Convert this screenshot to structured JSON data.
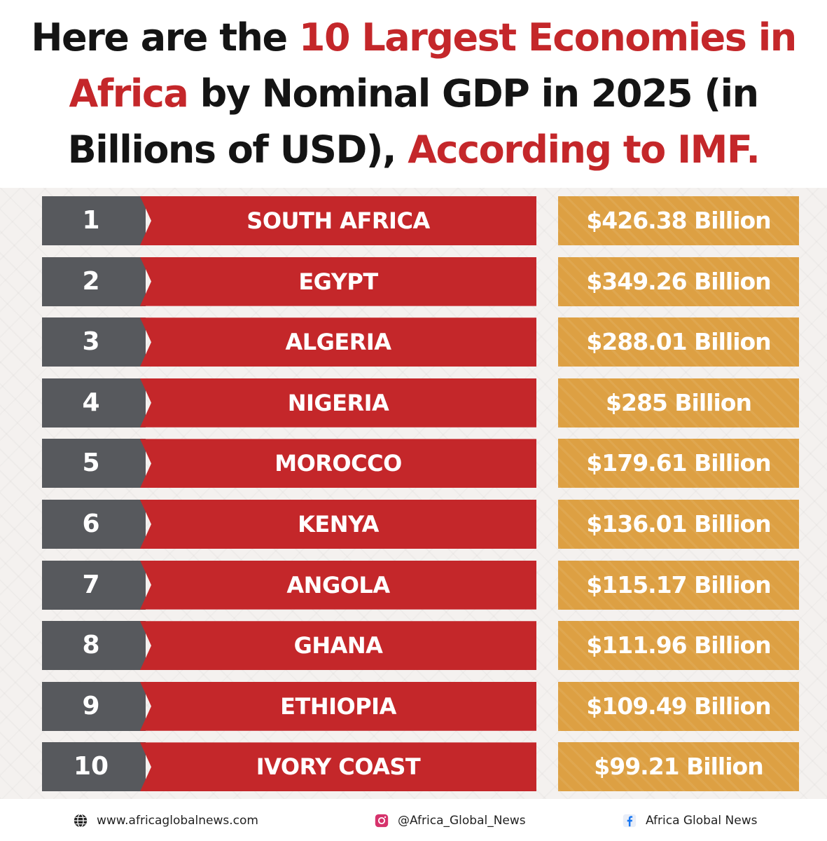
{
  "headline": {
    "part1": "Here are the ",
    "part2": "10 Largest Economies in Africa",
    "part3": " by Nominal GDP in 2025 (in Billions of USD), ",
    "part4": "According to IMF."
  },
  "colors": {
    "accent_red": "#c4272a",
    "rank_gray": "#57595d",
    "gdp_gold": "#dda043"
  },
  "rows": [
    {
      "rank": "1",
      "country": "SOUTH AFRICA",
      "gdp": "$426.38 Billion"
    },
    {
      "rank": "2",
      "country": "EGYPT",
      "gdp": "$349.26 Billion"
    },
    {
      "rank": "3",
      "country": "ALGERIA",
      "gdp": "$288.01 Billion"
    },
    {
      "rank": "4",
      "country": "NIGERIA",
      "gdp": "$285 Billion"
    },
    {
      "rank": "5",
      "country": "MOROCCO",
      "gdp": "$179.61 Billion"
    },
    {
      "rank": "6",
      "country": "KENYA",
      "gdp": "$136.01 Billion"
    },
    {
      "rank": "7",
      "country": "ANGOLA",
      "gdp": "$115.17 Billion"
    },
    {
      "rank": "8",
      "country": "GHANA",
      "gdp": "$111.96 Billion"
    },
    {
      "rank": "9",
      "country": "ETHIOPIA",
      "gdp": "$109.49 Billion"
    },
    {
      "rank": "10",
      "country": "IVORY COAST",
      "gdp": "$99.21 Billion"
    }
  ],
  "footer": {
    "website": "www.africaglobalnews.com",
    "website_icon": "globe-icon",
    "instagram": "@Africa_Global_News",
    "instagram_icon": "instagram-icon",
    "facebook": "Africa Global News",
    "facebook_icon": "facebook-icon"
  }
}
